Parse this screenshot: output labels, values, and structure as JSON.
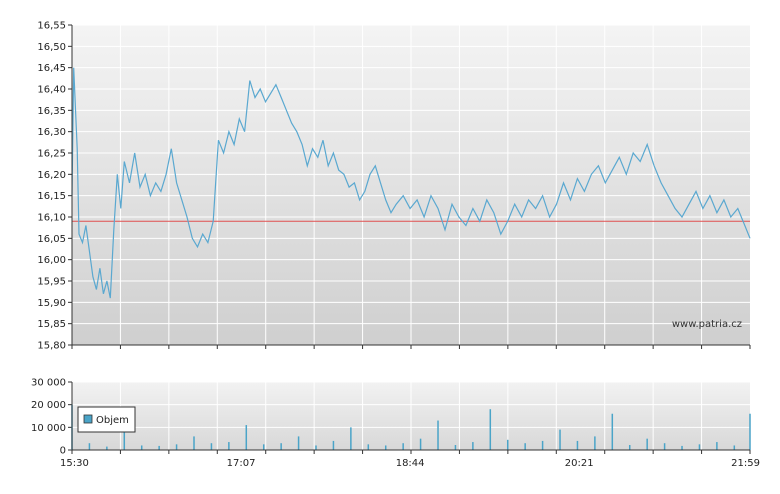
{
  "watermark": "www.patria.cz",
  "colors": {
    "price_line": "#5aa8d0",
    "reference_line": "#e05050",
    "volume_bar": "#4aa4c8",
    "grid": "#ffffff",
    "axis": "#333333"
  },
  "chart_data": [
    {
      "type": "line",
      "name": "price",
      "title": "",
      "xlabel": "",
      "ylabel": "",
      "ylim": [
        15.8,
        16.55
      ],
      "y_ticks": [
        "16,55",
        "16,50",
        "16,45",
        "16,40",
        "16,35",
        "16,30",
        "16,25",
        "16,20",
        "16,15",
        "16,10",
        "16,05",
        "16,00",
        "15,95",
        "15,90",
        "15,85",
        "15,80"
      ],
      "x_ticks": [
        "15:30",
        "17:07",
        "18:44",
        "20:21",
        "21:59"
      ],
      "reference_value": 16.09,
      "grid": true,
      "series": [
        {
          "x": [
            "15:30",
            "15:31",
            "15:33",
            "15:34",
            "15:36",
            "15:38",
            "15:40",
            "15:42",
            "15:44",
            "15:46",
            "15:48",
            "15:50",
            "15:52",
            "15:54",
            "15:56",
            "15:58",
            "16:00",
            "16:03",
            "16:06",
            "16:09",
            "16:12",
            "16:15",
            "16:18",
            "16:21",
            "16:24",
            "16:27",
            "16:30",
            "16:33",
            "16:36",
            "16:39",
            "16:42",
            "16:45",
            "16:48",
            "16:51",
            "16:54",
            "16:57",
            "17:00",
            "17:03",
            "17:06",
            "17:09",
            "17:12",
            "17:15",
            "17:18",
            "17:21",
            "17:24",
            "17:27",
            "17:30",
            "17:33",
            "17:36",
            "17:39",
            "17:42",
            "17:45",
            "17:48",
            "17:51",
            "17:54",
            "17:57",
            "18:00",
            "18:03",
            "18:06",
            "18:09",
            "18:12",
            "18:15",
            "18:18",
            "18:21",
            "18:24",
            "18:27",
            "18:30",
            "18:33",
            "18:36",
            "18:40",
            "18:44",
            "18:48",
            "18:52",
            "18:56",
            "19:00",
            "19:04",
            "19:08",
            "19:12",
            "19:16",
            "19:20",
            "19:24",
            "19:28",
            "19:32",
            "19:36",
            "19:40",
            "19:44",
            "19:48",
            "19:52",
            "19:56",
            "20:00",
            "20:04",
            "20:08",
            "20:12",
            "20:16",
            "20:20",
            "20:24",
            "20:28",
            "20:32",
            "20:36",
            "20:40",
            "20:44",
            "20:48",
            "20:52",
            "20:56",
            "21:00",
            "21:04",
            "21:08",
            "21:12",
            "21:16",
            "21:20",
            "21:24",
            "21:28",
            "21:32",
            "21:36",
            "21:40",
            "21:44",
            "21:48",
            "21:52",
            "21:56",
            "21:59"
          ],
          "y": [
            16.15,
            16.45,
            16.26,
            16.06,
            16.04,
            16.08,
            16.02,
            15.96,
            15.93,
            15.98,
            15.92,
            15.95,
            15.91,
            16.07,
            16.2,
            16.12,
            16.23,
            16.18,
            16.25,
            16.17,
            16.2,
            16.15,
            16.18,
            16.16,
            16.2,
            16.26,
            16.18,
            16.14,
            16.1,
            16.05,
            16.03,
            16.06,
            16.04,
            16.09,
            16.28,
            16.25,
            16.3,
            16.27,
            16.33,
            16.3,
            16.42,
            16.38,
            16.4,
            16.37,
            16.39,
            16.41,
            16.38,
            16.35,
            16.32,
            16.3,
            16.27,
            16.22,
            16.26,
            16.24,
            16.28,
            16.22,
            16.25,
            16.21,
            16.2,
            16.17,
            16.18,
            16.14,
            16.16,
            16.2,
            16.22,
            16.18,
            16.14,
            16.11,
            16.13,
            16.15,
            16.12,
            16.14,
            16.1,
            16.15,
            16.12,
            16.07,
            16.13,
            16.1,
            16.08,
            16.12,
            16.09,
            16.14,
            16.11,
            16.06,
            16.09,
            16.13,
            16.1,
            16.14,
            16.12,
            16.15,
            16.1,
            16.13,
            16.18,
            16.14,
            16.19,
            16.16,
            16.2,
            16.22,
            16.18,
            16.21,
            16.24,
            16.2,
            16.25,
            16.23,
            16.27,
            16.22,
            16.18,
            16.15,
            16.12,
            16.1,
            16.13,
            16.16,
            16.12,
            16.15,
            16.11,
            16.14,
            16.1,
            16.12,
            16.08,
            16.05
          ]
        }
      ]
    },
    {
      "type": "bar",
      "name": "volume",
      "ylim": [
        0,
        30000
      ],
      "y_ticks": [
        "30 000",
        "20 000",
        "10 000",
        "0"
      ],
      "x_ticks": [
        "15:30",
        "17:07",
        "18:44",
        "20:21",
        "21:59"
      ],
      "legend": [
        "Objem"
      ],
      "legend_position": "left",
      "grid": true,
      "series": [
        {
          "name": "Objem",
          "x": [
            "15:30",
            "15:40",
            "15:50",
            "16:00",
            "16:10",
            "16:20",
            "16:30",
            "16:40",
            "16:50",
            "17:00",
            "17:10",
            "17:20",
            "17:30",
            "17:40",
            "17:50",
            "18:00",
            "18:10",
            "18:20",
            "18:30",
            "18:40",
            "18:50",
            "19:00",
            "19:10",
            "19:20",
            "19:30",
            "19:40",
            "19:50",
            "20:00",
            "20:10",
            "20:20",
            "20:30",
            "20:40",
            "20:50",
            "21:00",
            "21:10",
            "21:20",
            "21:30",
            "21:40",
            "21:50",
            "21:59"
          ],
          "values": [
            20000,
            3000,
            1500,
            12000,
            2000,
            1800,
            2500,
            6000,
            3000,
            3500,
            11000,
            2500,
            3000,
            6000,
            2000,
            4000,
            10000,
            2500,
            2000,
            3000,
            5000,
            13000,
            2200,
            3500,
            18000,
            4500,
            3000,
            4000,
            9000,
            4000,
            6000,
            16000,
            2200,
            5000,
            3000,
            1800,
            2500,
            3500,
            2000,
            16000
          ]
        }
      ]
    }
  ]
}
